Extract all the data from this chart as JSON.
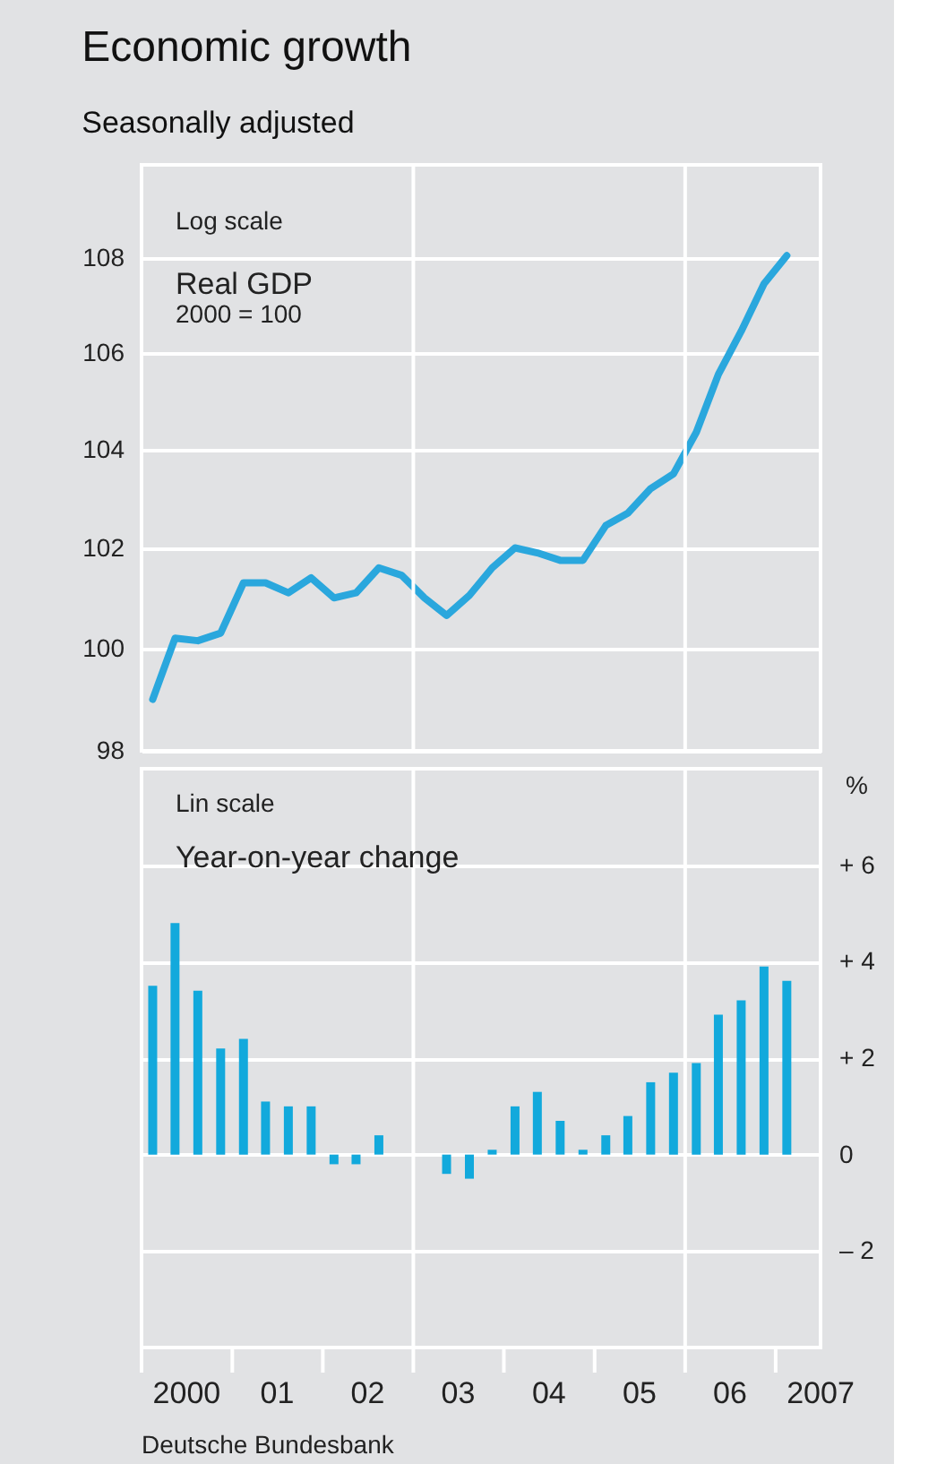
{
  "chart_data": [
    {
      "type": "line",
      "title": "Economic growth",
      "subtitle": "Seasonally adjusted",
      "log": true,
      "grid": "y",
      "tick_labels": "y",
      "annotations": [
        "Log scale",
        "Real GDP",
        "2000 = 100"
      ],
      "xlim": [
        "2000-01-01",
        "2007-07-01"
      ],
      "ylim": [
        98,
        110
      ],
      "yticks": [
        98,
        100,
        102,
        104,
        106,
        108
      ],
      "ref_lines": [
        {
          "axis": "x",
          "value": "2003-01-01",
          "color": "#ffffff"
        },
        {
          "axis": "x",
          "value": "2006-01-01",
          "color": "#ffffff"
        }
      ],
      "x": [
        "2000-02-15",
        "2000-05-15",
        "2000-08-15",
        "2000-11-15",
        "2001-02-15",
        "2001-05-15",
        "2001-08-15",
        "2001-11-15",
        "2002-02-15",
        "2002-05-15",
        "2002-08-15",
        "2002-11-15",
        "2003-02-15",
        "2003-05-15",
        "2003-08-15",
        "2003-11-15",
        "2004-02-15",
        "2004-05-15",
        "2004-08-15",
        "2004-11-15",
        "2005-02-15",
        "2005-05-15",
        "2005-08-15",
        "2005-11-15",
        "2006-02-15",
        "2006-05-15",
        "2006-08-15",
        "2006-11-15",
        "2007-02-15"
      ],
      "series": [
        {
          "color": "#2aa7dd",
          "values": [
            99.0,
            100.2,
            100.15,
            100.3,
            101.3,
            101.3,
            101.1,
            101.4,
            101.0,
            101.1,
            101.6,
            101.45,
            101.0,
            100.65,
            101.05,
            101.6,
            102.0,
            101.9,
            101.75,
            101.75,
            102.45,
            102.7,
            103.2,
            103.5,
            104.35,
            105.55,
            106.45,
            107.45,
            108.05
          ]
        }
      ]
    },
    {
      "type": "bar",
      "grid": "y",
      "y2label": "%",
      "annotations": [
        "Lin scale",
        "Year-on-year change",
        "Deutsche Bundesbank"
      ],
      "xlim": [
        "2000-01-01",
        "2007-07-01"
      ],
      "xticks": [
        {
          "value": "2000-01-01",
          "label": null
        },
        {
          "value": "2000-07-01",
          "label": "2000"
        },
        {
          "value": "2001-01-01",
          "label": null
        },
        {
          "value": "2001-07-01",
          "label": "01"
        },
        {
          "value": "2002-01-01",
          "label": null
        },
        {
          "value": "2002-07-01",
          "label": "02"
        },
        {
          "value": "2003-01-01",
          "label": null
        },
        {
          "value": "2003-07-01",
          "label": "03"
        },
        {
          "value": "2004-01-01",
          "label": null
        },
        {
          "value": "2004-07-01",
          "label": "04"
        },
        {
          "value": "2005-01-01",
          "label": null
        },
        {
          "value": "2005-07-01",
          "label": "05"
        },
        {
          "value": "2006-01-01",
          "label": null
        },
        {
          "value": "2006-07-01",
          "label": "06"
        },
        {
          "value": "2007-01-01",
          "label": null
        },
        {
          "value": "2007-07-01",
          "label": "2007"
        }
      ],
      "y2lim": [
        -4,
        8
      ],
      "y2ticks": [
        {
          "value": 6,
          "label": "+ 6"
        },
        {
          "value": 4,
          "label": "+ 4"
        },
        {
          "value": 2,
          "label": "+ 2"
        },
        0,
        {
          "value": -2,
          "label": "– 2"
        }
      ],
      "ref_lines": [
        {
          "axis": "x",
          "value": "2003-01-01",
          "color": "#ffffff"
        },
        {
          "axis": "x",
          "value": "2006-01-01",
          "color": "#ffffff"
        }
      ],
      "x": [
        "2000-02-15",
        "2000-05-15",
        "2000-08-15",
        "2000-11-15",
        "2001-02-15",
        "2001-05-15",
        "2001-08-15",
        "2001-11-15",
        "2002-02-15",
        "2002-05-15",
        "2002-08-15",
        "2002-11-15",
        "2003-02-15",
        "2003-05-15",
        "2003-08-15",
        "2003-11-15",
        "2004-02-15",
        "2004-05-15",
        "2004-08-15",
        "2004-11-15",
        "2005-02-15",
        "2005-05-15",
        "2005-08-15",
        "2005-11-15",
        "2006-02-15",
        "2006-05-15",
        "2006-08-15",
        "2006-11-15",
        "2007-02-15"
      ],
      "series": [
        {
          "color": "#12a9dc",
          "axis": "y2",
          "values": [
            3.5,
            4.8,
            3.4,
            2.2,
            2.4,
            1.1,
            1.0,
            1.0,
            -0.2,
            -0.2,
            0.4,
            0.0,
            0.0,
            -0.4,
            -0.5,
            0.1,
            1.0,
            1.3,
            0.7,
            0.1,
            0.4,
            0.8,
            1.5,
            1.7,
            1.9,
            2.9,
            3.2,
            3.9,
            3.6
          ]
        }
      ]
    }
  ]
}
